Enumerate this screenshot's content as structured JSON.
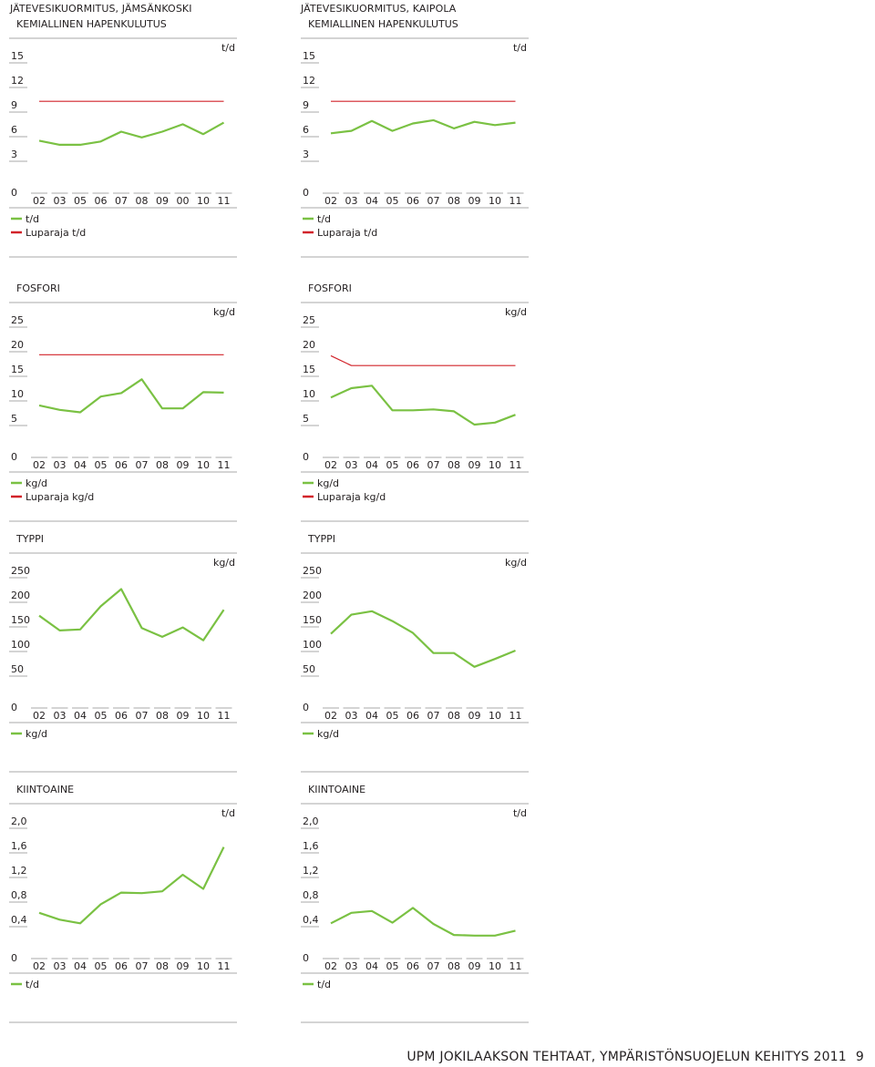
{
  "headers": {
    "left": "JÄTEVESIKUORMITUS, JÄMSÄNKOSKI",
    "right": "JÄTEVESIKUORMITUS, KAIPOLA"
  },
  "footer": {
    "text": "UPM JOKILAAKSON TEHTAAT, YMPÄRISTÖNSUOJELUN KEHITYS 2011",
    "page": "9"
  },
  "colors": {
    "series": "#7ac143",
    "limit": "#d2232a",
    "axis": "#231f20"
  },
  "chart_data": [
    {
      "id": "jam-khk",
      "type": "line",
      "title": "KEMIALLINEN HAPENKULUTUS",
      "unit": "t/d",
      "yticks": [
        "15",
        "12",
        "9",
        "6",
        "3",
        "0"
      ],
      "ylim": [
        0,
        15
      ],
      "categories": [
        "02",
        "03",
        "05",
        "06",
        "07",
        "08",
        "09",
        "00",
        "10",
        "11"
      ],
      "series": [
        {
          "name": "t/d",
          "values": [
            5.4,
            4.9,
            4.9,
            5.3,
            6.5,
            5.8,
            6.5,
            7.4,
            6.2,
            7.6
          ]
        },
        {
          "name": "Luparaja t/d",
          "values": [
            10.2,
            10.2,
            10.2,
            10.2,
            10.2,
            10.2,
            10.2,
            10.2,
            10.2,
            10.2
          ],
          "limit": true
        }
      ]
    },
    {
      "id": "kai-khk",
      "type": "line",
      "title": "KEMIALLINEN HAPENKULUTUS",
      "unit": "t/d",
      "yticks": [
        "15",
        "12",
        "9",
        "6",
        "3",
        "0"
      ],
      "ylim": [
        0,
        15
      ],
      "categories": [
        "02",
        "03",
        "04",
        "05",
        "06",
        "07",
        "08",
        "09",
        "10",
        "11"
      ],
      "series": [
        {
          "name": "t/d",
          "values": [
            6.3,
            6.6,
            7.8,
            6.6,
            7.5,
            7.9,
            6.9,
            7.7,
            7.3,
            7.6
          ]
        },
        {
          "name": "Luparaja t/d",
          "values": [
            10.2,
            10.2,
            10.2,
            10.2,
            10.2,
            10.2,
            10.2,
            10.2,
            10.2,
            10.2
          ],
          "limit": true
        }
      ]
    },
    {
      "id": "jam-p",
      "type": "line",
      "title": "FOSFORI",
      "unit": "kg/d",
      "yticks": [
        "25",
        "20",
        "15",
        "10",
        "5",
        "0"
      ],
      "ylim": [
        0,
        25
      ],
      "categories": [
        "02",
        "03",
        "04",
        "05",
        "06",
        "07",
        "08",
        "09",
        "10",
        "11"
      ],
      "series": [
        {
          "name": "kg/d",
          "values": [
            8.9,
            8.0,
            7.5,
            10.7,
            11.4,
            14.2,
            8.3,
            8.3,
            11.6,
            11.5
          ]
        },
        {
          "name": "Luparaja kg/d",
          "values": [
            19.2,
            19.2,
            19.2,
            19.2,
            19.2,
            19.2,
            19.2,
            19.2,
            19.2,
            19.2
          ],
          "limit": true
        }
      ]
    },
    {
      "id": "kai-p",
      "type": "line",
      "title": "FOSFORI",
      "unit": "kg/d",
      "yticks": [
        "25",
        "20",
        "15",
        "10",
        "5",
        "0"
      ],
      "ylim": [
        0,
        25
      ],
      "categories": [
        "02",
        "03",
        "04",
        "05",
        "06",
        "07",
        "08",
        "09",
        "10",
        "11"
      ],
      "series": [
        {
          "name": "kg/d",
          "values": [
            10.5,
            12.4,
            12.9,
            7.9,
            7.9,
            8.1,
            7.7,
            5.0,
            5.4,
            7.0
          ]
        },
        {
          "name": "Luparaja kg/d",
          "values": [
            19.0,
            17.0,
            17.0,
            17.0,
            17.0,
            17.0,
            17.0,
            17.0,
            17.0,
            17.0
          ],
          "limit": true
        }
      ]
    },
    {
      "id": "jam-n",
      "type": "line",
      "title": "TYPPI",
      "unit": "kg/d",
      "yticks": [
        "250",
        "200",
        "150",
        "100",
        "50",
        "0"
      ],
      "ylim": [
        0,
        250
      ],
      "categories": [
        "02",
        "03",
        "04",
        "05",
        "06",
        "07",
        "08",
        "09",
        "10",
        "11"
      ],
      "series": [
        {
          "name": "kg/d",
          "values": [
            171,
            141,
            143,
            190,
            225,
            146,
            128,
            147,
            121,
            183
          ]
        }
      ]
    },
    {
      "id": "kai-n",
      "type": "line",
      "title": "TYPPI",
      "unit": "kg/d",
      "yticks": [
        "250",
        "200",
        "150",
        "100",
        "50",
        "0"
      ],
      "ylim": [
        0,
        250
      ],
      "categories": [
        "02",
        "03",
        "04",
        "05",
        "06",
        "07",
        "08",
        "09",
        "10",
        "11"
      ],
      "series": [
        {
          "name": "kg/d",
          "values": [
            134,
            173,
            180,
            160,
            136,
            95,
            95,
            67,
            83,
            100
          ]
        }
      ]
    },
    {
      "id": "jam-ss",
      "type": "line",
      "title": "KIINTOAINE",
      "unit": "t/d",
      "yticks": [
        "2,0",
        "1,6",
        "1,2",
        "0,8",
        "0,4",
        "0"
      ],
      "ylim": [
        0,
        2.0
      ],
      "categories": [
        "02",
        "03",
        "04",
        "05",
        "06",
        "07",
        "08",
        "09",
        "10",
        "11"
      ],
      "series": [
        {
          "name": "t/d",
          "values": [
            0.61,
            0.5,
            0.44,
            0.75,
            0.94,
            0.93,
            0.96,
            1.23,
            1.0,
            1.68
          ]
        }
      ]
    },
    {
      "id": "kai-ss",
      "type": "line",
      "title": "KIINTOAINE",
      "unit": "t/d",
      "yticks": [
        "2,0",
        "1,6",
        "1,2",
        "0,8",
        "0,4",
        "0"
      ],
      "ylim": [
        0,
        2.0
      ],
      "categories": [
        "02",
        "03",
        "04",
        "05",
        "06",
        "07",
        "08",
        "09",
        "10",
        "11"
      ],
      "series": [
        {
          "name": "t/d",
          "values": [
            0.44,
            0.61,
            0.64,
            0.45,
            0.69,
            0.43,
            0.25,
            0.24,
            0.24,
            0.32
          ]
        }
      ]
    }
  ]
}
